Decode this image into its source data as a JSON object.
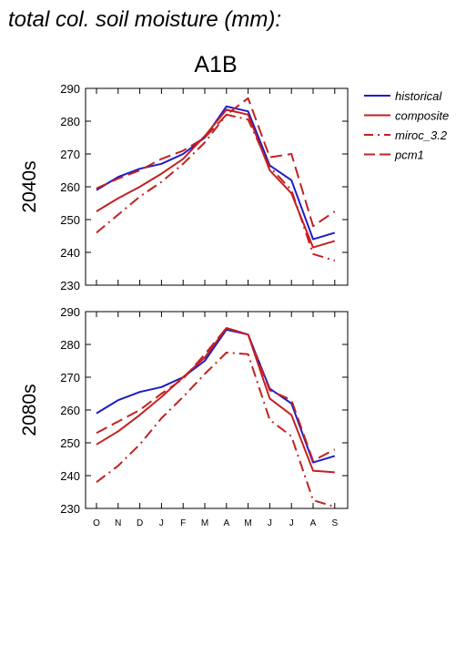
{
  "figure": {
    "title": "total col. soil moisture (mm):",
    "scenario": "A1B"
  },
  "chart_data": [
    {
      "type": "line",
      "panel_label": "2040s",
      "categories": [
        "O",
        "N",
        "D",
        "J",
        "F",
        "M",
        "A",
        "M",
        "J",
        "J",
        "A",
        "S"
      ],
      "ylim": [
        230,
        290
      ],
      "yticks": [
        230,
        240,
        250,
        260,
        270,
        280,
        290
      ],
      "series": [
        {
          "name": "historical",
          "color": "#1c1ccc",
          "dash": "solid",
          "values": [
            259,
            263,
            265.5,
            267,
            270,
            275,
            284.5,
            283,
            266.5,
            262,
            244,
            246
          ]
        },
        {
          "name": "composite",
          "color": "#c42020",
          "dash": "solid",
          "values": [
            252.5,
            256.5,
            260,
            264,
            268.5,
            275.5,
            283.5,
            282,
            265,
            258,
            241.5,
            243.5
          ]
        },
        {
          "name": "miroc_3.2",
          "color": "#c42020",
          "dash": "dashdot",
          "values": [
            246,
            251.5,
            257,
            261.5,
            267,
            273.5,
            282,
            280.5,
            266,
            259,
            239.5,
            237.5
          ]
        },
        {
          "name": "pcm1",
          "color": "#c42020",
          "dash": "dash",
          "values": [
            259.5,
            262.5,
            265,
            268.5,
            271,
            275,
            282,
            287,
            269,
            270,
            248,
            252.5
          ]
        }
      ]
    },
    {
      "type": "line",
      "panel_label": "2080s",
      "categories": [
        "O",
        "N",
        "D",
        "J",
        "F",
        "M",
        "A",
        "M",
        "J",
        "J",
        "A",
        "S"
      ],
      "ylim": [
        230,
        290
      ],
      "yticks": [
        230,
        240,
        250,
        260,
        270,
        280,
        290
      ],
      "series": [
        {
          "name": "historical",
          "color": "#1c1ccc",
          "dash": "solid",
          "values": [
            259,
            263,
            265.5,
            267,
            270,
            275,
            284.5,
            283,
            266.5,
            262,
            244,
            246
          ]
        },
        {
          "name": "composite",
          "color": "#c42020",
          "dash": "solid",
          "values": [
            249.5,
            253.5,
            258.5,
            264,
            270,
            276,
            285,
            283,
            263.5,
            258.5,
            241.5,
            241
          ]
        },
        {
          "name": "miroc_3.2",
          "color": "#c42020",
          "dash": "dashdot",
          "values": [
            238,
            243,
            249.5,
            257.5,
            264,
            271,
            277.5,
            277,
            257,
            252,
            232.5,
            230.5
          ]
        },
        {
          "name": "pcm1",
          "color": "#c42020",
          "dash": "dash",
          "values": [
            253,
            256.5,
            260,
            265,
            269.5,
            277,
            285,
            283,
            266,
            263,
            244.5,
            248
          ]
        }
      ]
    }
  ],
  "legend": {
    "items": [
      {
        "label": "historical",
        "color": "#1c1ccc",
        "dash": "solid"
      },
      {
        "label": "composite",
        "color": "#c42020",
        "dash": "solid"
      },
      {
        "label": "miroc_3.2",
        "color": "#c42020",
        "dash": "dashdot"
      },
      {
        "label": "pcm1",
        "color": "#c42020",
        "dash": "dash"
      }
    ]
  }
}
